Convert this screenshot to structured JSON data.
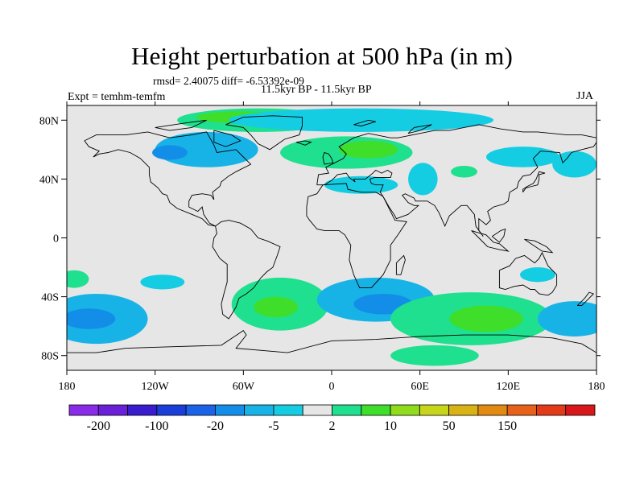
{
  "title": "Height perturbation at 500 hPa (in m)",
  "stats_text": "rmsd= 2.40075 diff= -6.53392e-09",
  "experiment_text": "Expt = temhm-temfm",
  "period_text": "11.5kyr BP - 11.5kyr BP",
  "season": "JJA",
  "map": {
    "projection": "cylindrical-equidistant",
    "lon_range": [
      -180,
      180
    ],
    "lat_range": [
      -90,
      90
    ],
    "background_color": "#e6e6e6",
    "coastline_color": "#000000"
  },
  "x_ticks": [
    {
      "lon": -180,
      "label": "180"
    },
    {
      "lon": -120,
      "label": "120W"
    },
    {
      "lon": -60,
      "label": "60W"
    },
    {
      "lon": 0,
      "label": "0"
    },
    {
      "lon": 60,
      "label": "60E"
    },
    {
      "lon": 120,
      "label": "120E"
    },
    {
      "lon": 180,
      "label": "180"
    }
  ],
  "y_ticks": [
    {
      "lat": 80,
      "label": "80N"
    },
    {
      "lat": 40,
      "label": "40N"
    },
    {
      "lat": 0,
      "label": "0"
    },
    {
      "lat": -40,
      "label": "40S"
    },
    {
      "lat": -80,
      "label": "80S"
    }
  ],
  "colorbar": {
    "colors": [
      "#8b2bea",
      "#6a1fd9",
      "#3a1ccf",
      "#1a3ed9",
      "#1a63e8",
      "#138ee8",
      "#18b3e6",
      "#15cde3",
      "#e6e6e6",
      "#1fe08f",
      "#3ede2b",
      "#8fdb1c",
      "#c7d61a",
      "#d9b315",
      "#e38a12",
      "#e8611a",
      "#e33a1a",
      "#d9171a"
    ],
    "labels": [
      {
        "after_index": 0,
        "text": "-200"
      },
      {
        "after_index": 2,
        "text": "-100"
      },
      {
        "after_index": 4,
        "text": "-20"
      },
      {
        "after_index": 6,
        "text": "-5"
      },
      {
        "after_index": 8,
        "text": "2"
      },
      {
        "after_index": 10,
        "text": "10"
      },
      {
        "after_index": 12,
        "text": "50"
      },
      {
        "after_index": 14,
        "text": "150"
      }
    ]
  },
  "shaded_regions": [
    {
      "name": "greenland-arctic-positive",
      "color": "#1fe08f",
      "lon": -50,
      "lat": 80,
      "rx": 55,
      "ry": 8
    },
    {
      "name": "greenland-core",
      "color": "#3ede2b",
      "lon": -62,
      "lat": 82,
      "rx": 30,
      "ry": 4
    },
    {
      "name": "n-atlantic-cyclone",
      "color": "#18b3e6",
      "lon": -85,
      "lat": 60,
      "rx": 35,
      "ry": 12
    },
    {
      "name": "n-atlantic-cyclone-core",
      "color": "#138ee8",
      "lon": -110,
      "lat": 58,
      "rx": 12,
      "ry": 5
    },
    {
      "name": "arctic-negative",
      "color": "#15cde3",
      "lon": 20,
      "lat": 80,
      "rx": 90,
      "ry": 8
    },
    {
      "name": "scandinavia-positive",
      "color": "#1fe08f",
      "lon": 10,
      "lat": 58,
      "rx": 45,
      "ry": 11
    },
    {
      "name": "scandinavia-core",
      "color": "#3ede2b",
      "lon": 25,
      "lat": 60,
      "rx": 20,
      "ry": 6
    },
    {
      "name": "mediterranean-negative",
      "color": "#15cde3",
      "lon": 20,
      "lat": 36,
      "rx": 25,
      "ry": 6
    },
    {
      "name": "asia-negative",
      "color": "#15cde3",
      "lon": 62,
      "lat": 40,
      "rx": 10,
      "ry": 11
    },
    {
      "name": "siberia-positive",
      "color": "#1fe08f",
      "lon": 90,
      "lat": 45,
      "rx": 9,
      "ry": 4
    },
    {
      "name": "east-asia-negative",
      "color": "#15cde3",
      "lon": 130,
      "lat": 55,
      "rx": 25,
      "ry": 7
    },
    {
      "name": "pacific-negative",
      "color": "#15cde3",
      "lon": 165,
      "lat": 50,
      "rx": 15,
      "ry": 9
    },
    {
      "name": "s-pacific-negative",
      "color": "#18b3e6",
      "lon": -160,
      "lat": -55,
      "rx": 35,
      "ry": 17
    },
    {
      "name": "s-pacific-core",
      "color": "#138ee8",
      "lon": -165,
      "lat": -55,
      "rx": 18,
      "ry": 7
    },
    {
      "name": "s-atlantic-positive",
      "color": "#1fe08f",
      "lon": -35,
      "lat": -45,
      "rx": 33,
      "ry": 18
    },
    {
      "name": "s-atlantic-core",
      "color": "#3ede2b",
      "lon": -38,
      "lat": -47,
      "rx": 15,
      "ry": 7
    },
    {
      "name": "s-africa-negative",
      "color": "#18b3e6",
      "lon": 30,
      "lat": -42,
      "rx": 40,
      "ry": 15
    },
    {
      "name": "s-africa-core",
      "color": "#138ee8",
      "lon": 35,
      "lat": -45,
      "rx": 20,
      "ry": 7
    },
    {
      "name": "s-indian-positive",
      "color": "#1fe08f",
      "lon": 95,
      "lat": -55,
      "rx": 55,
      "ry": 18
    },
    {
      "name": "s-indian-core",
      "color": "#3ede2b",
      "lon": 105,
      "lat": -55,
      "rx": 25,
      "ry": 9
    },
    {
      "name": "se-pacific-negative",
      "color": "#18b3e6",
      "lon": 165,
      "lat": -55,
      "rx": 25,
      "ry": 12
    },
    {
      "name": "tropical-pacific-negative",
      "color": "#15cde3",
      "lon": -115,
      "lat": -30,
      "rx": 15,
      "ry": 5
    },
    {
      "name": "antarctic-positive",
      "color": "#1fe08f",
      "lon": 70,
      "lat": -80,
      "rx": 30,
      "ry": 7
    },
    {
      "name": "se-australia-negative",
      "color": "#15cde3",
      "lon": 140,
      "lat": -25,
      "rx": 12,
      "ry": 5
    },
    {
      "name": "ne-pacific-positive",
      "color": "#1fe08f",
      "lon": -175,
      "lat": -28,
      "rx": 10,
      "ry": 6
    }
  ]
}
